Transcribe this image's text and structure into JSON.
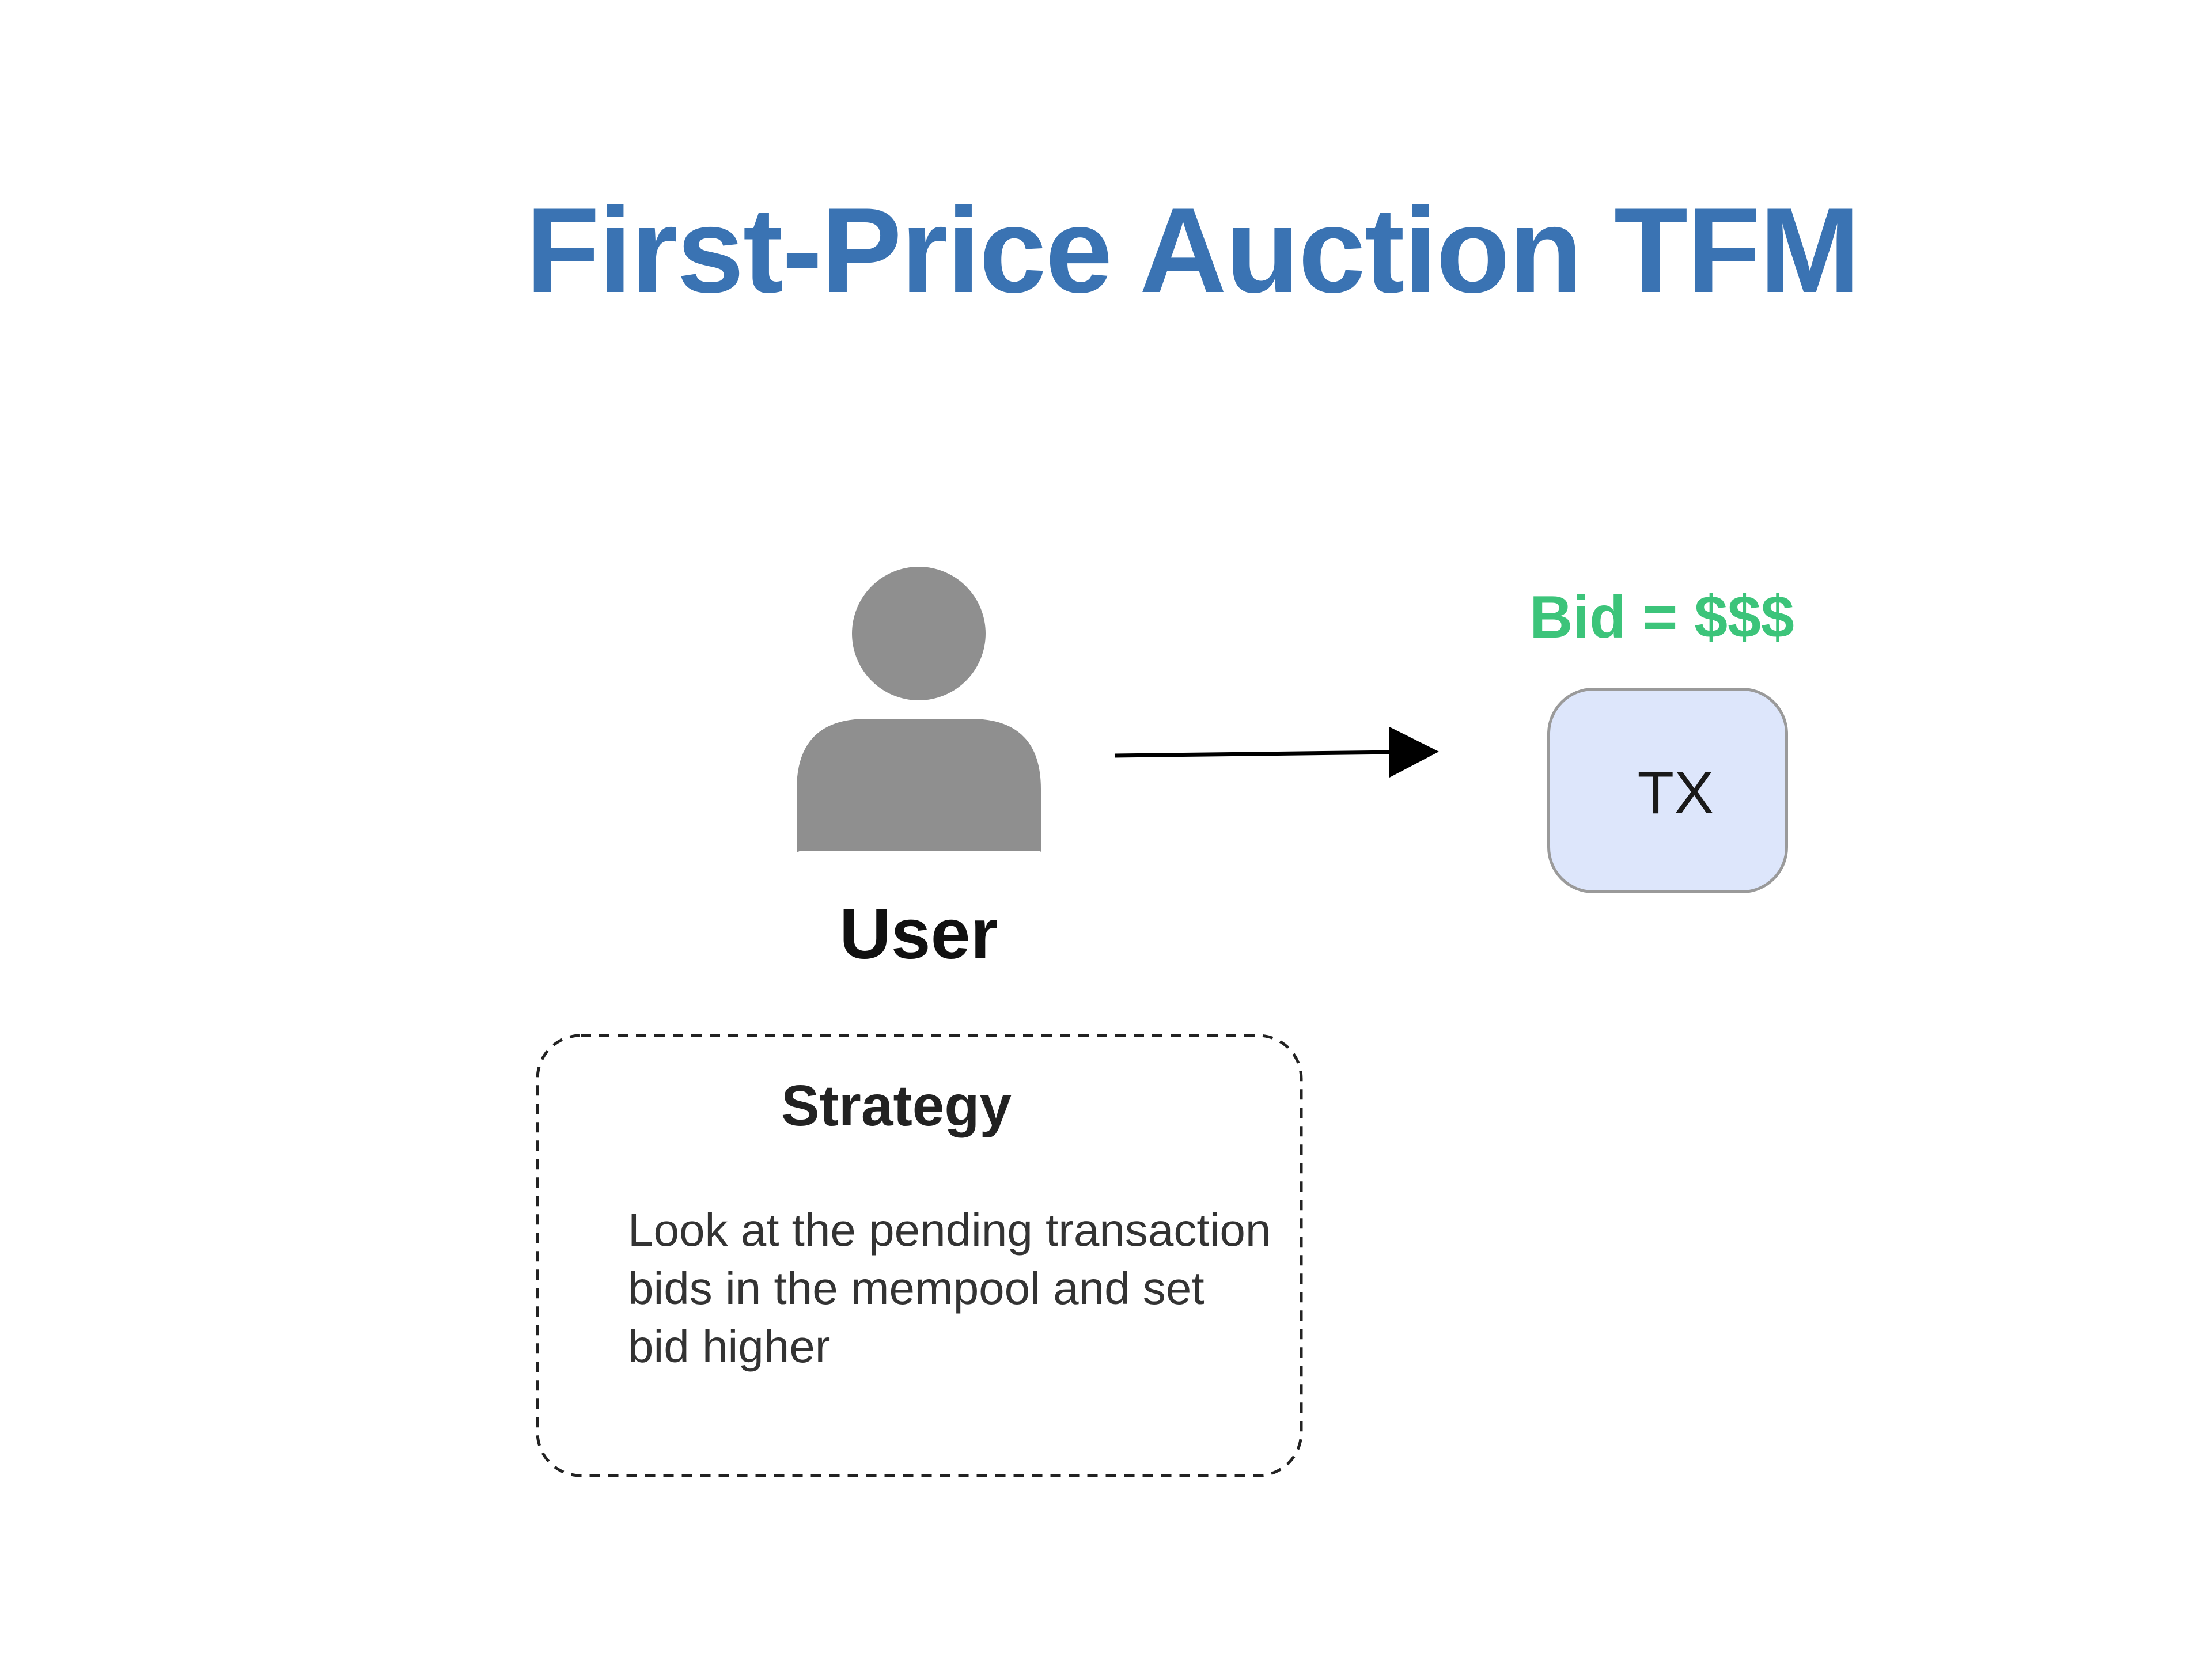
{
  "title": "First-Price Auction TFM",
  "user": {
    "label": "User",
    "icon": "person-icon"
  },
  "arrow": {
    "icon": "arrow-right-icon"
  },
  "transaction": {
    "bid_label": "Bid = $$$",
    "label": "TX"
  },
  "strategy": {
    "title": "Strategy",
    "lines": [
      "Look at the pending transaction",
      "bids in the mempool and set",
      "bid higher"
    ]
  },
  "colors": {
    "title": "#3a73b3",
    "bid": "#3cc47a",
    "tx_fill": "#dde6fb",
    "person": "#8f8f8f"
  }
}
